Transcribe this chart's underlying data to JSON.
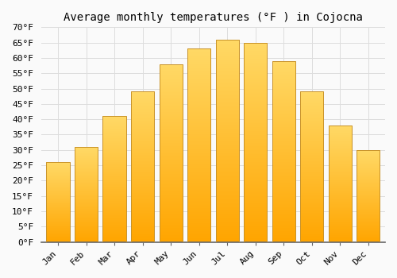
{
  "title": "Average monthly temperatures (°F ) in Cojocna",
  "months": [
    "Jan",
    "Feb",
    "Mar",
    "Apr",
    "May",
    "Jun",
    "Jul",
    "Aug",
    "Sep",
    "Oct",
    "Nov",
    "Dec"
  ],
  "values": [
    26,
    31,
    41,
    49,
    58,
    63,
    66,
    65,
    59,
    49,
    38,
    30
  ],
  "bar_color_top": "#FFD966",
  "bar_color_bottom": "#FFA500",
  "bar_edge_color": "#C8922A",
  "ylim": [
    0,
    70
  ],
  "ytick_step": 5,
  "background_color": "#FAFAFA",
  "grid_color": "#DDDDDD",
  "title_fontsize": 10,
  "tick_fontsize": 8,
  "ylabel_suffix": "°F"
}
